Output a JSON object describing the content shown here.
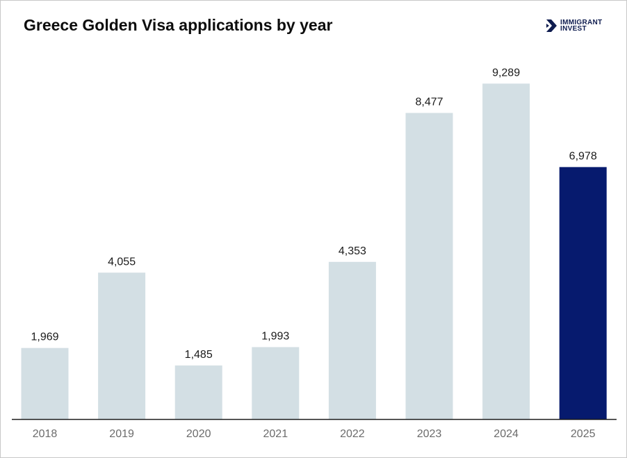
{
  "chart_data": {
    "type": "bar",
    "title": "Greece Golden Visa applications by year",
    "categories": [
      "2018",
      "2019",
      "2020",
      "2021",
      "2022",
      "2023",
      "2024",
      "2025"
    ],
    "values": [
      1969,
      4055,
      1485,
      1993,
      4353,
      8477,
      9289,
      6978
    ],
    "data_labels": [
      "1,969",
      "4,055",
      "1,485",
      "1,993",
      "4,353",
      "8,477",
      "9,289",
      "6,978"
    ],
    "ylim": [
      0,
      11200
    ],
    "grid": false,
    "colors": {
      "default": "#d3dfe4",
      "highlight": "#061a6e",
      "axis": "#1a1a1a"
    },
    "highlight_index": 7
  },
  "logo": {
    "line1": "IMMIGRANT",
    "line2": "INVEST",
    "icon": "chevron-arrow-icon"
  }
}
